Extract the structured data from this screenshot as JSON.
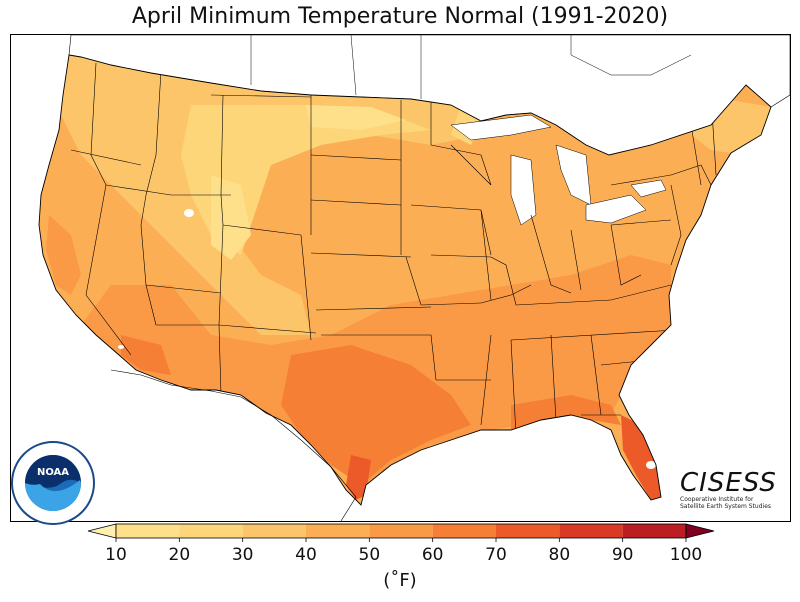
{
  "title": "April Minimum Temperature Normal (1991-2020)",
  "units_label": "(˚F)",
  "colorbar": {
    "ticks": [
      "10",
      "20",
      "30",
      "40",
      "50",
      "60",
      "70",
      "80",
      "90",
      "100"
    ],
    "colors": [
      "#fee08b",
      "#fed67a",
      "#fdc56a",
      "#fcae55",
      "#fa9a46",
      "#f67f36",
      "#ec5a2a",
      "#d83a25",
      "#bc1d23",
      "#9e0a26"
    ],
    "extend_low": "#fff0b0",
    "extend_high": "#800020"
  },
  "logos": {
    "noaa_center": "NOAA",
    "noaa_ring": "NATIONAL OCEANIC AND ATMOSPHERIC ADMINISTRATION",
    "noaa_ring_bottom": "U.S. DEPARTMENT OF COMMERCE",
    "cisess_word": "CISESS",
    "cisess_line1": "Cooperative Institute for",
    "cisess_line2": "Satellite Earth System Studies"
  },
  "map_colors": {
    "cold": "#fee08b",
    "cool": "#fdc56a",
    "mild": "#fcae55",
    "warm": "#fa9a46",
    "hot": "#f67f36",
    "hotter": "#ec5a2a",
    "water": "#ffffff",
    "borders": "#000000"
  }
}
